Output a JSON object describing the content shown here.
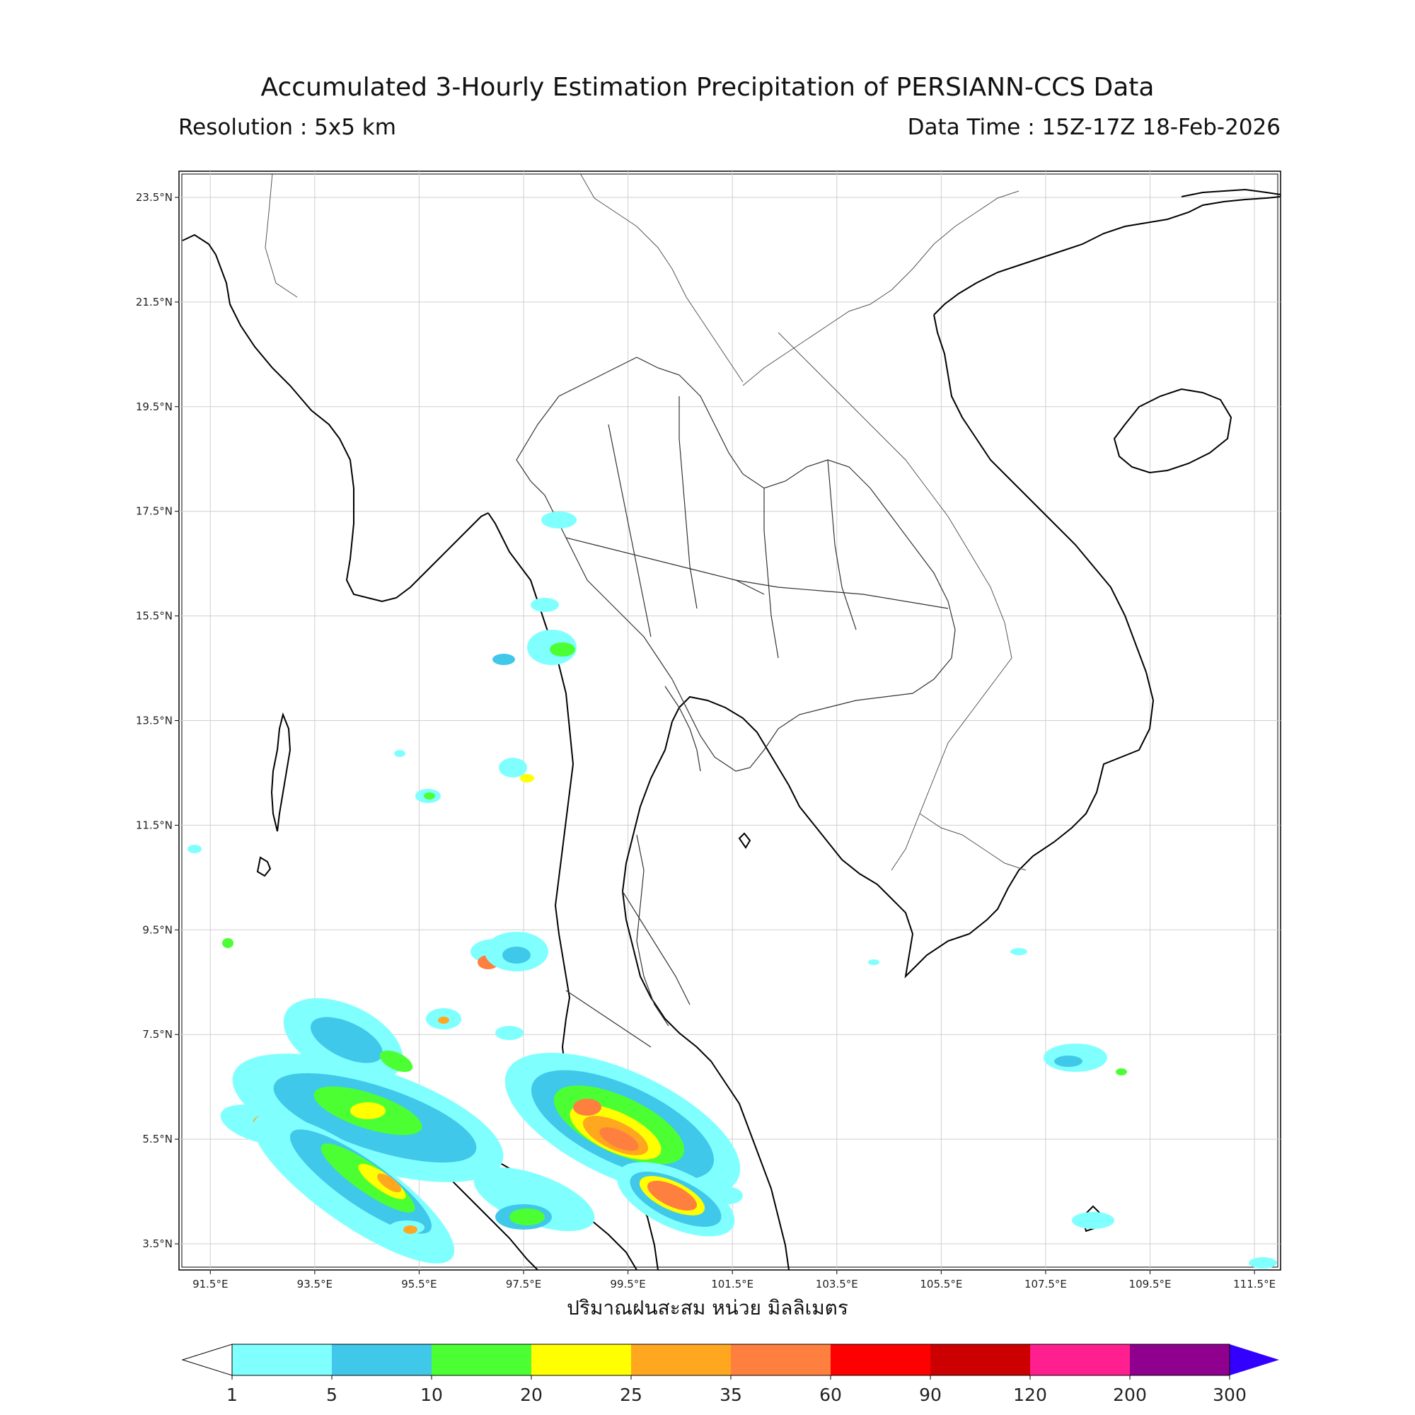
{
  "title": "Accumulated 3-Hourly Estimation Precipitation of PERSIANN-CCS Data",
  "resolution": "Resolution : 5x5 km",
  "data_time": "Data Time : 15Z-17Z 18-Feb-2026",
  "x_axis_title": "ปริมาณฝนสะสม หน่วย มิลลิเมตร",
  "map": {
    "region": "Mainland Southeast Asia",
    "lon_range": [
      90.9,
      112.0
    ],
    "lat_range": [
      3.0,
      24.0
    ],
    "lon_ticks": [
      "91.5°E",
      "93.5°E",
      "95.5°E",
      "97.5°E",
      "99.5°E",
      "101.5°E",
      "103.5°E",
      "105.5°E",
      "107.5°E",
      "109.5°E",
      "111.5°E"
    ],
    "lat_ticks": [
      "23.5°N",
      "21.5°N",
      "19.5°N",
      "17.5°N",
      "15.5°N",
      "13.5°N",
      "11.5°N",
      "9.5°N",
      "7.5°N",
      "5.5°N",
      "3.5°N"
    ],
    "grid": true
  },
  "colorbar": {
    "levels": [
      "1",
      "5",
      "10",
      "20",
      "25",
      "35",
      "60",
      "90",
      "120",
      "200",
      "300"
    ],
    "colors": [
      "#80ffff",
      "#3fc8ea",
      "#4cff33",
      "#ffff00",
      "#ffa81f",
      "#ff7f3f",
      "#ff0000",
      "#cc0000",
      "#ff1f8f",
      "#8f008f"
    ],
    "under_color": "#ffffff",
    "over_color": "#3300ff"
  }
}
